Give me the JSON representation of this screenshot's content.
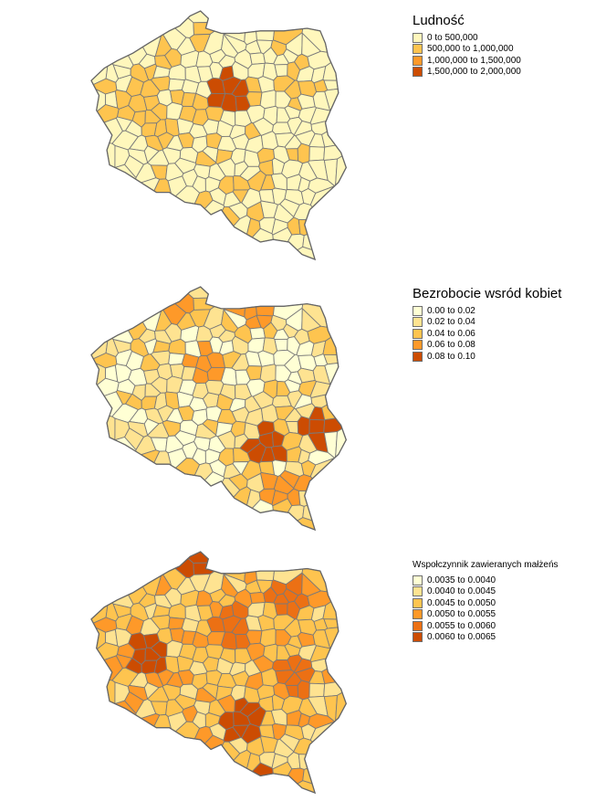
{
  "maps": [
    {
      "legend_title": "Ludność",
      "palette": [
        "#fff7bc",
        "#fec44f",
        "#fe9929",
        "#cc4c02"
      ],
      "base_class": 0,
      "hotspots": [
        {
          "point": [
            0.53,
            0.32
          ],
          "cls": 3
        },
        {
          "point": [
            0.21,
            0.31
          ],
          "cls": 1
        },
        {
          "point": [
            0.41,
            0.4
          ],
          "cls": 1
        },
        {
          "point": [
            0.24,
            0.46
          ],
          "cls": 1
        }
      ],
      "classes": [
        "0 to 500,000",
        "500,000 to 1,000,000",
        "1,000,000 to 1,500,000",
        "1,500,000 to 2,000,000"
      ]
    },
    {
      "legend_title": "Bezrobocie wsród kobiet",
      "palette": [
        "#ffffd4",
        "#fee391",
        "#fec44f",
        "#fe9929",
        "#cc4c02"
      ],
      "base_class": 1,
      "hotspots": [
        {
          "point": [
            0.62,
            0.08
          ],
          "cls": 3
        },
        {
          "point": [
            0.45,
            0.32
          ],
          "cls": 3
        },
        {
          "point": [
            0.68,
            0.64
          ],
          "cls": 4
        },
        {
          "point": [
            0.86,
            0.58
          ],
          "cls": 4
        },
        {
          "point": [
            0.74,
            0.82
          ],
          "cls": 3
        },
        {
          "point": [
            0.3,
            0.05
          ],
          "cls": 3
        },
        {
          "point": [
            0.15,
            0.35
          ],
          "cls": 0
        },
        {
          "point": [
            0.4,
            0.66
          ],
          "cls": 0
        }
      ],
      "classes": [
        "0.00 to 0.02",
        "0.02 to 0.04",
        "0.04 to 0.06",
        "0.06 to 0.08",
        "0.08 to 0.10"
      ]
    },
    {
      "legend_title": "Wspołczynnik zawieranych małżeńs",
      "palette": [
        "#ffffd4",
        "#fee391",
        "#fec44f",
        "#fe9929",
        "#ec7014",
        "#cc4c02"
      ],
      "base_class": 2,
      "hotspots": [
        {
          "point": [
            0.4,
            0.03
          ],
          "cls": 5
        },
        {
          "point": [
            0.22,
            0.43
          ],
          "cls": 5
        },
        {
          "point": [
            0.67,
            0.95
          ],
          "cls": 5
        },
        {
          "point": [
            0.58,
            0.7
          ],
          "cls": 5
        },
        {
          "point": [
            0.78,
            0.5
          ],
          "cls": 4
        },
        {
          "point": [
            0.55,
            0.3
          ],
          "cls": 4
        },
        {
          "point": [
            0.75,
            0.2
          ],
          "cls": 4
        },
        {
          "point": [
            0.3,
            0.82
          ],
          "cls": 0
        }
      ],
      "classes": [
        "0.0035 to 0.0040",
        "0.0040 to 0.0045",
        "0.0045 to 0.0050",
        "0.0050 to 0.0055",
        "0.0055 to 0.0060",
        "0.0060 to 0.0065"
      ]
    }
  ]
}
